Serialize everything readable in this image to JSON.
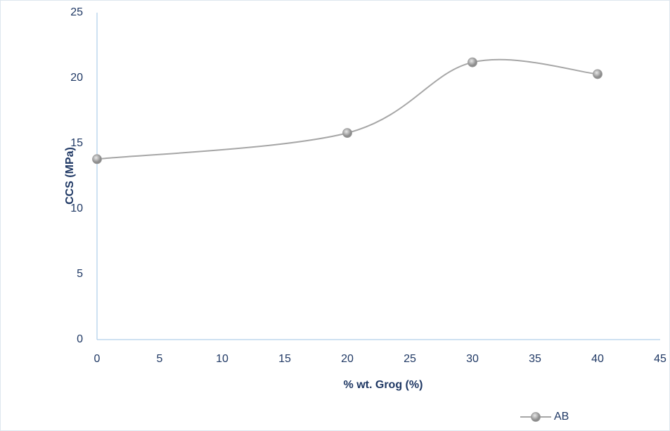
{
  "chart_data": {
    "type": "line",
    "x_label": "% wt. Grog (%)",
    "y_label": "CCS (MPa)",
    "xlim": [
      0,
      45
    ],
    "xticks": [
      0,
      5,
      10,
      15,
      20,
      25,
      30,
      35,
      40,
      45
    ],
    "ylim": [
      0,
      25
    ],
    "yticks": [
      0,
      5,
      10,
      15,
      20,
      25
    ],
    "smooth": true,
    "grid": false,
    "legend": "bottom-right",
    "x": [
      0,
      20,
      30,
      40
    ],
    "series": [
      {
        "name": "AB",
        "color": "#a6a6a6",
        "values": [
          13.8,
          15.8,
          21.2,
          20.3
        ]
      }
    ]
  }
}
